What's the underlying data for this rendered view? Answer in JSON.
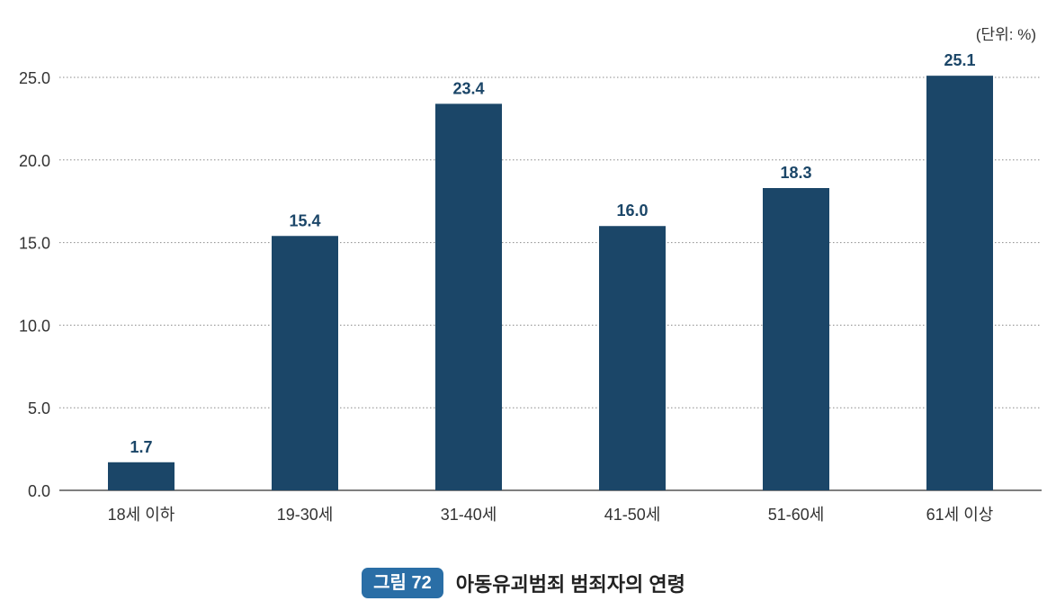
{
  "unit_label": "(단위: %)",
  "caption": {
    "badge": "그림 72",
    "title": "아동유괴범죄 범죄자의 연령"
  },
  "colors": {
    "bar": "#1b4668",
    "value_label": "#1b4668",
    "grid": "#8a8a8a",
    "axis": "#555555",
    "badge_bg": "#2a6ea6"
  },
  "chart_data": {
    "type": "bar",
    "categories": [
      "18세 이하",
      "19-30세",
      "31-40세",
      "41-50세",
      "51-60세",
      "61세 이상"
    ],
    "values": [
      1.7,
      15.4,
      23.4,
      16.0,
      18.3,
      25.1
    ],
    "value_labels": [
      "1.7",
      "15.4",
      "23.4",
      "16.0",
      "18.3",
      "25.1"
    ],
    "y_ticks": [
      "0.0",
      "5.0",
      "10.0",
      "15.0",
      "20.0",
      "25.0"
    ],
    "ylim": [
      0,
      25
    ],
    "grid": "horizontal-dotted",
    "legend": "none"
  }
}
